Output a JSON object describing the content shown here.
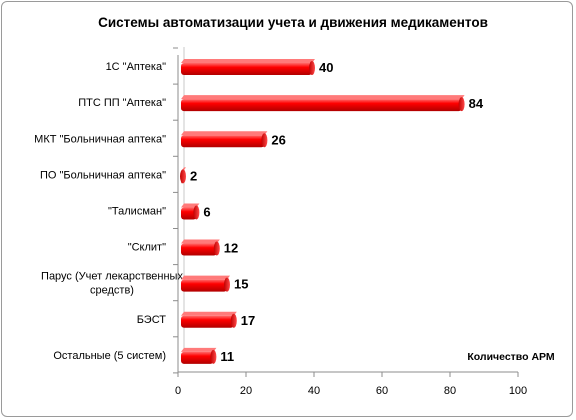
{
  "chart_data": {
    "type": "bar",
    "orientation": "horizontal",
    "title": "Системы автоматизации учета и движения медикаментов",
    "xlabel": "Количество  АРМ",
    "ylabel": "",
    "xlim": [
      0,
      100
    ],
    "xticks": [
      0,
      20,
      40,
      60,
      80,
      100
    ],
    "grid": false,
    "bar_color": "#ff0000",
    "categories": [
      [
        "1С \"Аптека\""
      ],
      [
        "ПТС ПП \"Аптека\""
      ],
      [
        "МКТ \"Больничная  аптека\""
      ],
      [
        "ПО \"Больничная  аптека\""
      ],
      [
        "\"Талисман\""
      ],
      [
        "\"Склит\""
      ],
      [
        "Парус (Учет лекарственных",
        "средств)"
      ],
      [
        "БЭСТ"
      ],
      [
        "Остальные (5 систем)"
      ]
    ],
    "values": [
      40,
      84,
      26,
      2,
      6,
      12,
      15,
      17,
      11
    ]
  }
}
